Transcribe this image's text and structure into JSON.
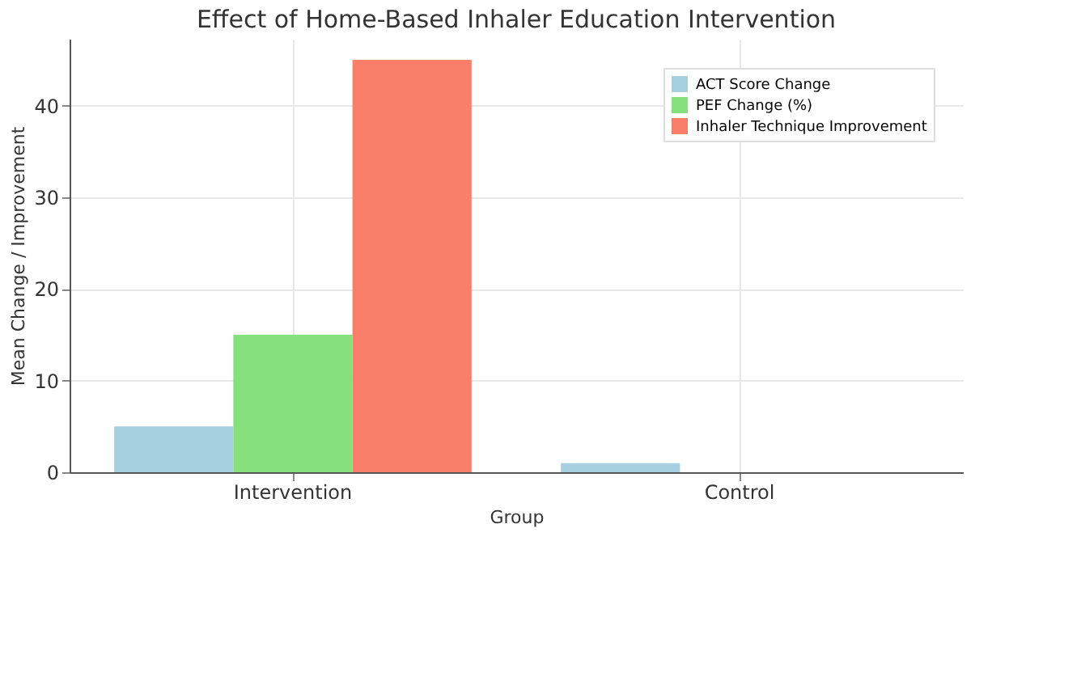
{
  "chart_data": {
    "type": "bar",
    "title": "Effect of Home-Based Inhaler Education Intervention",
    "xlabel": "Group",
    "ylabel": "Mean Change / Improvement",
    "categories": [
      "Intervention",
      "Control"
    ],
    "series": [
      {
        "name": "ACT Score Change",
        "color": "#a6cfe0",
        "values": [
          5,
          1
        ]
      },
      {
        "name": "PEF Change (%)",
        "color": "#86e07e",
        "values": [
          15,
          0
        ]
      },
      {
        "name": "Inhaler Technique Improvement",
        "color": "#f97f6b",
        "values": [
          45,
          0
        ]
      }
    ],
    "ylim": [
      0,
      47.3
    ],
    "yticks": [
      0,
      10,
      20,
      30,
      40
    ],
    "grid": true,
    "legend": "top right"
  }
}
